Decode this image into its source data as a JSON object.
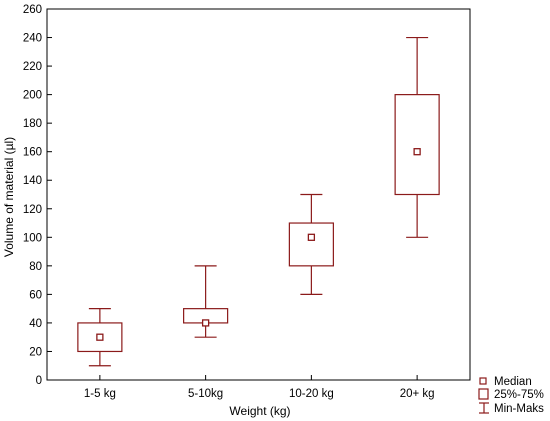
{
  "chart_data": {
    "type": "box",
    "categories": [
      "1-5 kg",
      "5-10kg",
      "10-20 kg",
      "20+ kg"
    ],
    "series": [
      {
        "median": [
          30,
          40,
          100,
          160
        ],
        "q1": [
          20,
          40,
          80,
          130
        ],
        "q3": [
          40,
          50,
          110,
          200
        ],
        "min": [
          10,
          30,
          60,
          100
        ],
        "max": [
          50,
          80,
          130,
          240
        ]
      }
    ],
    "xlabel": "Weight (kg)",
    "ylabel": "Volume of material (µl)",
    "ylim": [
      0,
      260
    ],
    "yticks": [
      "0",
      "20",
      "40",
      "60",
      "80",
      "100",
      "120",
      "140",
      "160",
      "180",
      "200",
      "220",
      "240",
      "260"
    ],
    "grid": false,
    "legend_position": "bottom-right",
    "legend": {
      "median": "Median",
      "box": "25%-75%",
      "whisker": "Min-Maks"
    },
    "colors": {
      "mark": "#8b1a1a",
      "axis": "#000000"
    }
  }
}
